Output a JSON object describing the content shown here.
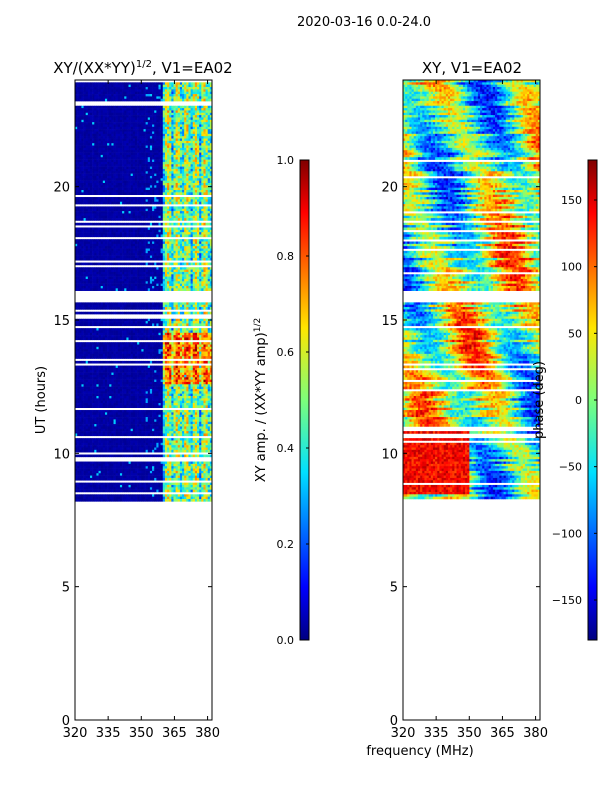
{
  "figure": {
    "suptitle": "2020-03-16 0.0-24.0",
    "xlabel": "frequency (MHz)",
    "ylabel": "UT (hours)"
  },
  "colors": {
    "cmap": [
      "#000080",
      "#0000ff",
      "#0080ff",
      "#00e0ff",
      "#7dff7a",
      "#ffe600",
      "#ff7a00",
      "#ff0000",
      "#800000"
    ],
    "background": "#ffffff",
    "frame": "#000000"
  },
  "chart_data": [
    {
      "type": "heatmap",
      "title": "XY/(XX*YY)",
      "title_sup": "1/2",
      "title_suffix": ", V1=EA02",
      "xlabel": "",
      "ylabel": "UT (hours)",
      "xlim": [
        320,
        382
      ],
      "ylim": [
        0,
        24
      ],
      "xticks": [
        "320",
        "335",
        "350",
        "365",
        "380"
      ],
      "xtick_values": [
        320,
        335,
        350,
        365,
        380
      ],
      "yticks": [
        "0",
        "5",
        "10",
        "15",
        "20"
      ],
      "ytick_values": [
        0,
        5,
        10,
        15,
        20
      ],
      "data_ut_range": [
        8.2,
        24
      ],
      "colorbar": {
        "label": "XY amp. / (XX*YY amp)",
        "label_sup": "1/2",
        "range": [
          0.0,
          1.0
        ],
        "ticks": [
          "0.0",
          "0.2",
          "0.4",
          "0.6",
          "0.8",
          "1.0"
        ],
        "tick_values": [
          0.0,
          0.2,
          0.4,
          0.6,
          0.8,
          1.0
        ]
      }
    },
    {
      "type": "heatmap",
      "title": "XY, V1=EA02",
      "xlabel": "frequency (MHz)",
      "ylabel": "",
      "xlim": [
        320,
        382
      ],
      "ylim": [
        0,
        24
      ],
      "xticks": [
        "320",
        "335",
        "350",
        "365",
        "380"
      ],
      "xtick_values": [
        320,
        335,
        350,
        365,
        380
      ],
      "yticks": [
        "0",
        "5",
        "10",
        "15",
        "20"
      ],
      "ytick_values": [
        0,
        5,
        10,
        15,
        20
      ],
      "data_ut_range": [
        8.2,
        24
      ],
      "colorbar": {
        "label": "phase (deg)",
        "range": [
          -180,
          180
        ],
        "ticks": [
          "−150",
          "−100",
          "−50",
          "0",
          "50",
          "100",
          "150"
        ],
        "tick_values": [
          -150,
          -100,
          -50,
          0,
          50,
          100,
          150
        ]
      }
    }
  ]
}
